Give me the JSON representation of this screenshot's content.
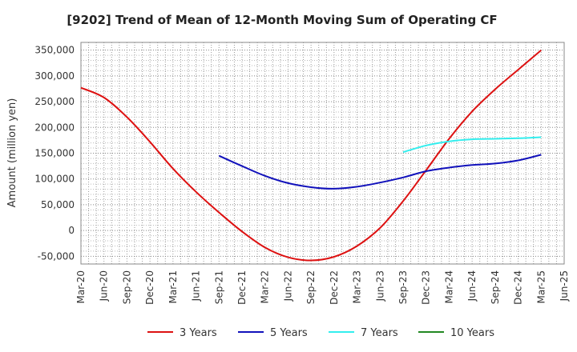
{
  "chart_data": {
    "type": "line",
    "title": "[9202]  Trend of Mean of 12-Month Moving Sum of Operating CF",
    "ylabel": "Amount (million yen)",
    "xlabel": "",
    "ylim": [
      -65000,
      365000
    ],
    "yticks": [
      350000,
      300000,
      250000,
      200000,
      150000,
      100000,
      50000,
      0,
      -50000
    ],
    "ytick_labels": [
      "350,000",
      "300,000",
      "250,000",
      "200,000",
      "150,000",
      "100,000",
      "50,000",
      "0",
      "-50,000"
    ],
    "xticks": [
      "Mar-20",
      "Jun-20",
      "Sep-20",
      "Dec-20",
      "Mar-21",
      "Jun-21",
      "Sep-21",
      "Dec-21",
      "Mar-22",
      "Jun-22",
      "Sep-22",
      "Dec-22",
      "Mar-23",
      "Jun-23",
      "Sep-23",
      "Dec-23",
      "Mar-24",
      "Jun-24",
      "Sep-24",
      "Dec-24",
      "Mar-25",
      "Jun-25"
    ],
    "grid": true,
    "legend_position": "bottom",
    "series": [
      {
        "name": "3 Years",
        "color": "#dd1111",
        "x": [
          "Mar-20",
          "Jun-20",
          "Sep-20",
          "Dec-20",
          "Mar-21",
          "Jun-21",
          "Sep-21",
          "Dec-21",
          "Mar-22",
          "Jun-22",
          "Sep-22",
          "Dec-22",
          "Mar-23",
          "Jun-23",
          "Sep-23",
          "Dec-23",
          "Mar-24",
          "Jun-24",
          "Sep-24",
          "Dec-24",
          "Mar-25"
        ],
        "values": [
          277000,
          258000,
          220000,
          172000,
          120000,
          75000,
          35000,
          -2000,
          -33000,
          -52000,
          -58000,
          -51000,
          -30000,
          5000,
          57000,
          117000,
          178000,
          231000,
          274000,
          312000,
          350000
        ]
      },
      {
        "name": "5 Years",
        "color": "#1111bb",
        "x": [
          "Sep-21",
          "Dec-21",
          "Mar-22",
          "Jun-22",
          "Sep-22",
          "Dec-22",
          "Mar-23",
          "Jun-23",
          "Sep-23",
          "Dec-23",
          "Mar-24",
          "Jun-24",
          "Sep-24",
          "Dec-24",
          "Mar-25"
        ],
        "values": [
          145000,
          125000,
          106000,
          92000,
          84000,
          81000,
          85000,
          93000,
          103000,
          115000,
          122000,
          127000,
          130000,
          136000,
          147000
        ]
      },
      {
        "name": "7 Years",
        "color": "#33eeee",
        "x": [
          "Sep-23",
          "Dec-23",
          "Mar-24",
          "Jun-24",
          "Sep-24",
          "Dec-24",
          "Mar-25"
        ],
        "values": [
          152000,
          165000,
          173000,
          177000,
          178000,
          179000,
          181000
        ]
      },
      {
        "name": "10 Years",
        "color": "#228822",
        "x": [],
        "values": []
      }
    ]
  }
}
